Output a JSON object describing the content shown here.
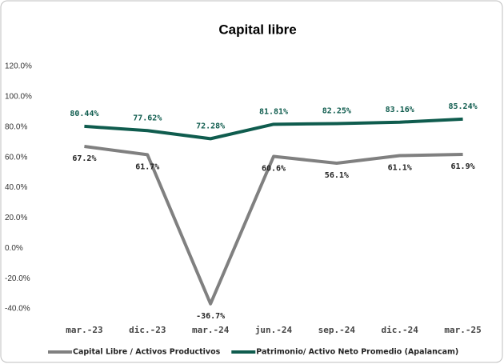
{
  "chart_data": {
    "type": "line",
    "title": "Capital libre",
    "categories": [
      "mar.-23",
      "dic.-23",
      "mar.-24",
      "jun.-24",
      "sep.-24",
      "dic.-24",
      "mar.-25"
    ],
    "series": [
      {
        "name": "Capital Libre / Activos Productivos",
        "color": "#808080",
        "values": [
          67.2,
          61.7,
          -36.7,
          60.6,
          56.1,
          61.1,
          61.9
        ],
        "value_labels": [
          "67.2%",
          "61.7%",
          "-36.7%",
          "60.6%",
          "56.1%",
          "61.1%",
          "61.9%"
        ]
      },
      {
        "name": "Patrimonio/ Activo Neto Promedio (Apalancam)",
        "color": "#0f5c4e",
        "values": [
          80.44,
          77.62,
          72.28,
          81.81,
          82.25,
          83.16,
          85.24
        ],
        "value_labels": [
          "80.44%",
          "77.62%",
          "72.28%",
          "81.81%",
          "82.25%",
          "83.16%",
          "85.24%"
        ]
      }
    ],
    "ylim": [
      -40,
      120
    ],
    "yticks": [
      {
        "value": -40,
        "label": "-40.0%"
      },
      {
        "value": -20,
        "label": "-20.0%"
      },
      {
        "value": 0,
        "label": "0.0%"
      },
      {
        "value": 20,
        "label": "20.0%"
      },
      {
        "value": 40,
        "label": "40.0%"
      },
      {
        "value": 60,
        "label": "60.0%"
      },
      {
        "value": 80,
        "label": "80.0%"
      },
      {
        "value": 100,
        "label": "100.0%"
      },
      {
        "value": 120,
        "label": "120.0%"
      }
    ],
    "grid": false,
    "legend": "bottom"
  }
}
